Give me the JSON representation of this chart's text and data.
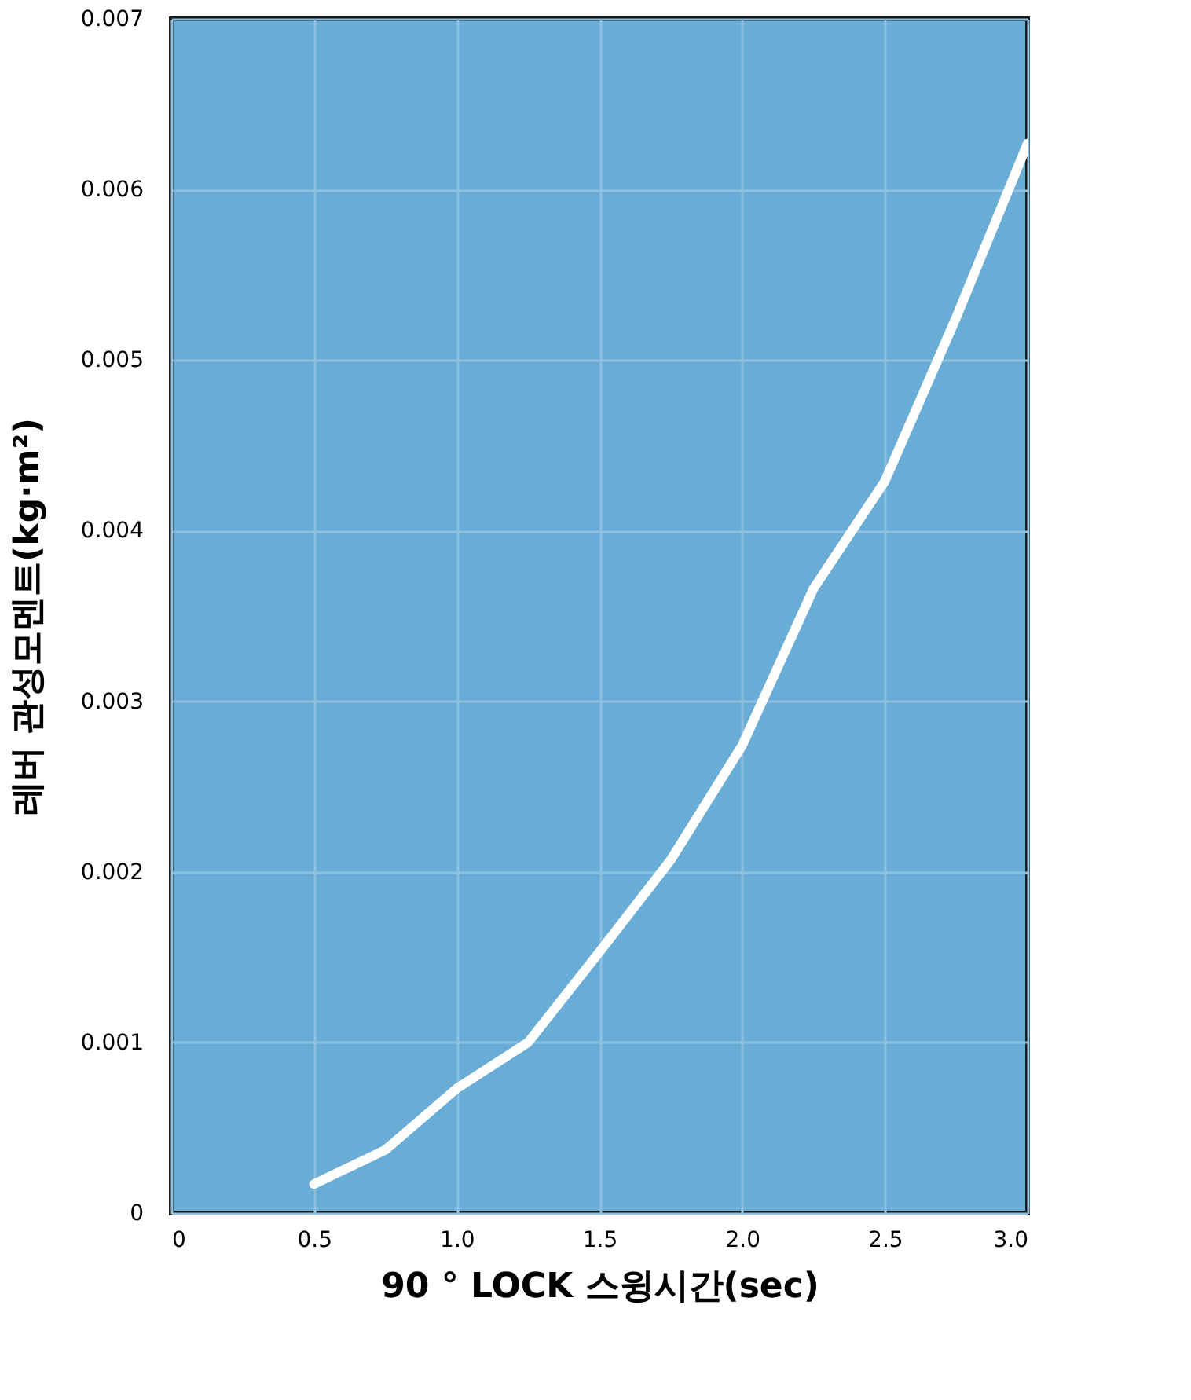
{
  "chart_data": {
    "type": "line",
    "xlabel": "90 ° LOCK 스윙시간(sec)",
    "ylabel": "레버 관성모멘트(kg·m²)",
    "x": [
      0.5,
      0.75,
      1.0,
      1.25,
      1.5,
      1.75,
      2.0,
      2.25,
      2.5,
      2.75,
      3.0
    ],
    "series": [
      {
        "color": "#ffffff",
        "values": [
          0.00017,
          0.00037,
          0.00073,
          0.001,
          0.00153,
          0.00207,
          0.00274,
          0.00366,
          0.00429,
          0.00525,
          0.00627
        ]
      }
    ],
    "xlim": [
      0,
      3.0
    ],
    "xticks": [
      {
        "value": 0,
        "label": "0"
      },
      {
        "value": 0.5,
        "label": "0.5"
      },
      {
        "value": 1.0,
        "label": "1.0"
      },
      {
        "value": 1.5,
        "label": "1.5"
      },
      {
        "value": 2.0,
        "label": "2.0"
      },
      {
        "value": 2.5,
        "label": "2.5"
      },
      {
        "value": 3.0,
        "label": "3.0"
      }
    ],
    "ylim": [
      0,
      0.007
    ],
    "yticks": [
      {
        "value": 0,
        "label": "0"
      },
      0.001,
      0.002,
      0.003,
      0.004,
      0.005,
      0.006,
      0.007
    ],
    "grid": true,
    "marker": "none",
    "line_style": "solid"
  }
}
